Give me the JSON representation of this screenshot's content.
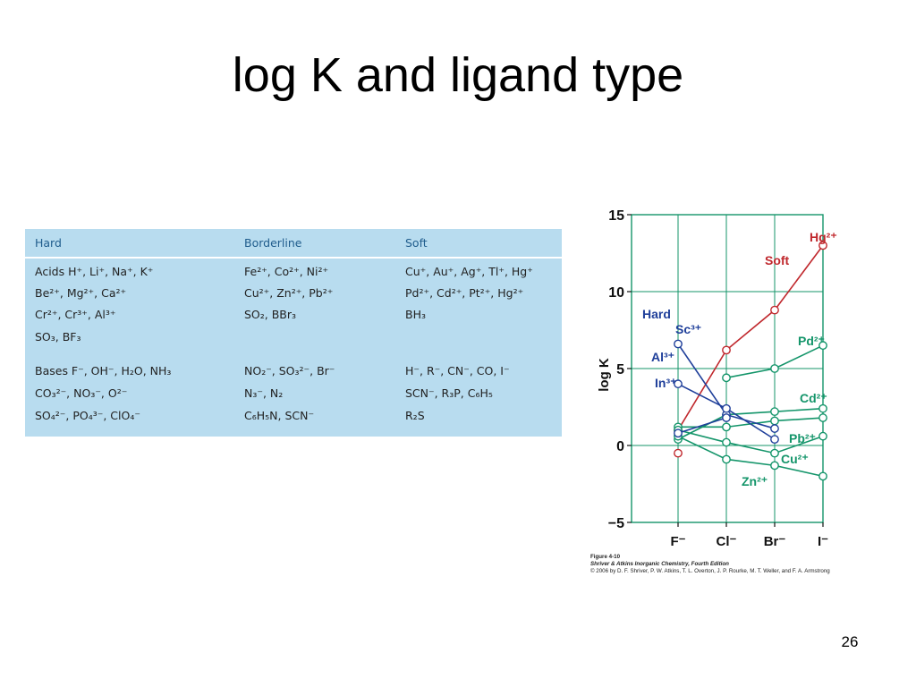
{
  "slide": {
    "title": "log K and ligand type",
    "page_number": "26"
  },
  "table": {
    "headers": [
      "Hard",
      "Borderline",
      "Soft"
    ],
    "acids": {
      "hard": [
        "Acids H⁺, Li⁺, Na⁺, K⁺",
        "Be²⁺, Mg²⁺, Ca²⁺",
        "Cr²⁺, Cr³⁺, Al³⁺",
        "SO₃, BF₃"
      ],
      "borderline": [
        "Fe²⁺, Co²⁺, Ni²⁺",
        "Cu²⁺, Zn²⁺, Pb²⁺",
        "SO₂, BBr₃"
      ],
      "soft": [
        "Cu⁺, Au⁺, Ag⁺, Tl⁺, Hg⁺",
        "Pd²⁺, Cd²⁺, Pt²⁺, Hg²⁺",
        "BH₃"
      ]
    },
    "bases": {
      "hard": [
        "Bases F⁻, OH⁻, H₂O, NH₃",
        "CO₃²⁻, NO₃⁻, O²⁻",
        "SO₄²⁻, PO₄³⁻, ClO₄⁻"
      ],
      "borderline": [
        "NO₂⁻, SO₃²⁻, Br⁻",
        "N₃⁻, N₂",
        "C₆H₅N, SCN⁻"
      ],
      "soft": [
        "H⁻, R⁻, CN⁻, CO, I⁻",
        "SCN⁻, R₃P, C₆H₅",
        "R₂S"
      ]
    }
  },
  "figure_caption": {
    "line1": "Figure 4-10",
    "line2": "Shriver & Atkins Inorganic Chemistry, Fourth Edition",
    "line3": "© 2006 by D. F. Shriver, P. W. Atkins, T. L. Overton, J. P. Rourke, M. T. Weller, and F. A. Armstrong"
  },
  "chart_data": {
    "type": "line",
    "categories": [
      "F⁻",
      "Cl⁻",
      "Br⁻",
      "I⁻"
    ],
    "ylabel": "log K",
    "ylim": [
      -5,
      15
    ],
    "yticks": [
      -5,
      0,
      5,
      10,
      15
    ],
    "grid": true,
    "colors": {
      "hard": "#1f3f9a",
      "soft": "#c0282d",
      "borderline": "#14956a",
      "grid": "#14956a"
    },
    "group_labels": {
      "hard": "Hard",
      "soft": "Soft"
    },
    "series": [
      {
        "name": "Hg²⁺",
        "group": "soft",
        "values": [
          1.0,
          6.2,
          8.8,
          13.0
        ]
      },
      {
        "name": "Pd²⁺",
        "group": "borderline",
        "values": [
          null,
          4.4,
          5.0,
          6.5
        ]
      },
      {
        "name": "Cd²⁺",
        "group": "borderline",
        "values": [
          0.4,
          2.0,
          2.2,
          2.4
        ]
      },
      {
        "name": "Pb²⁺",
        "group": "borderline",
        "values": [
          1.2,
          1.2,
          1.6,
          1.8
        ]
      },
      {
        "name": "Cu²⁺",
        "group": "borderline",
        "values": [
          1.0,
          0.2,
          -0.5,
          0.6
        ]
      },
      {
        "name": "Zn²⁺",
        "group": "borderline",
        "values": [
          0.6,
          -0.9,
          -1.3,
          -2.0
        ]
      },
      {
        "name": "Sc³⁺",
        "group": "hard",
        "values": [
          6.6,
          2.0,
          1.1,
          null
        ]
      },
      {
        "name": "Al³⁺",
        "group": "hard",
        "values": [
          0.8,
          1.8,
          null,
          null
        ]
      },
      {
        "name": "In³⁺",
        "group": "hard",
        "values": [
          4.0,
          2.4,
          0.4,
          null
        ]
      },
      {
        "name": "",
        "group": "soft",
        "values": [
          -0.5,
          null,
          null,
          null
        ]
      }
    ]
  }
}
